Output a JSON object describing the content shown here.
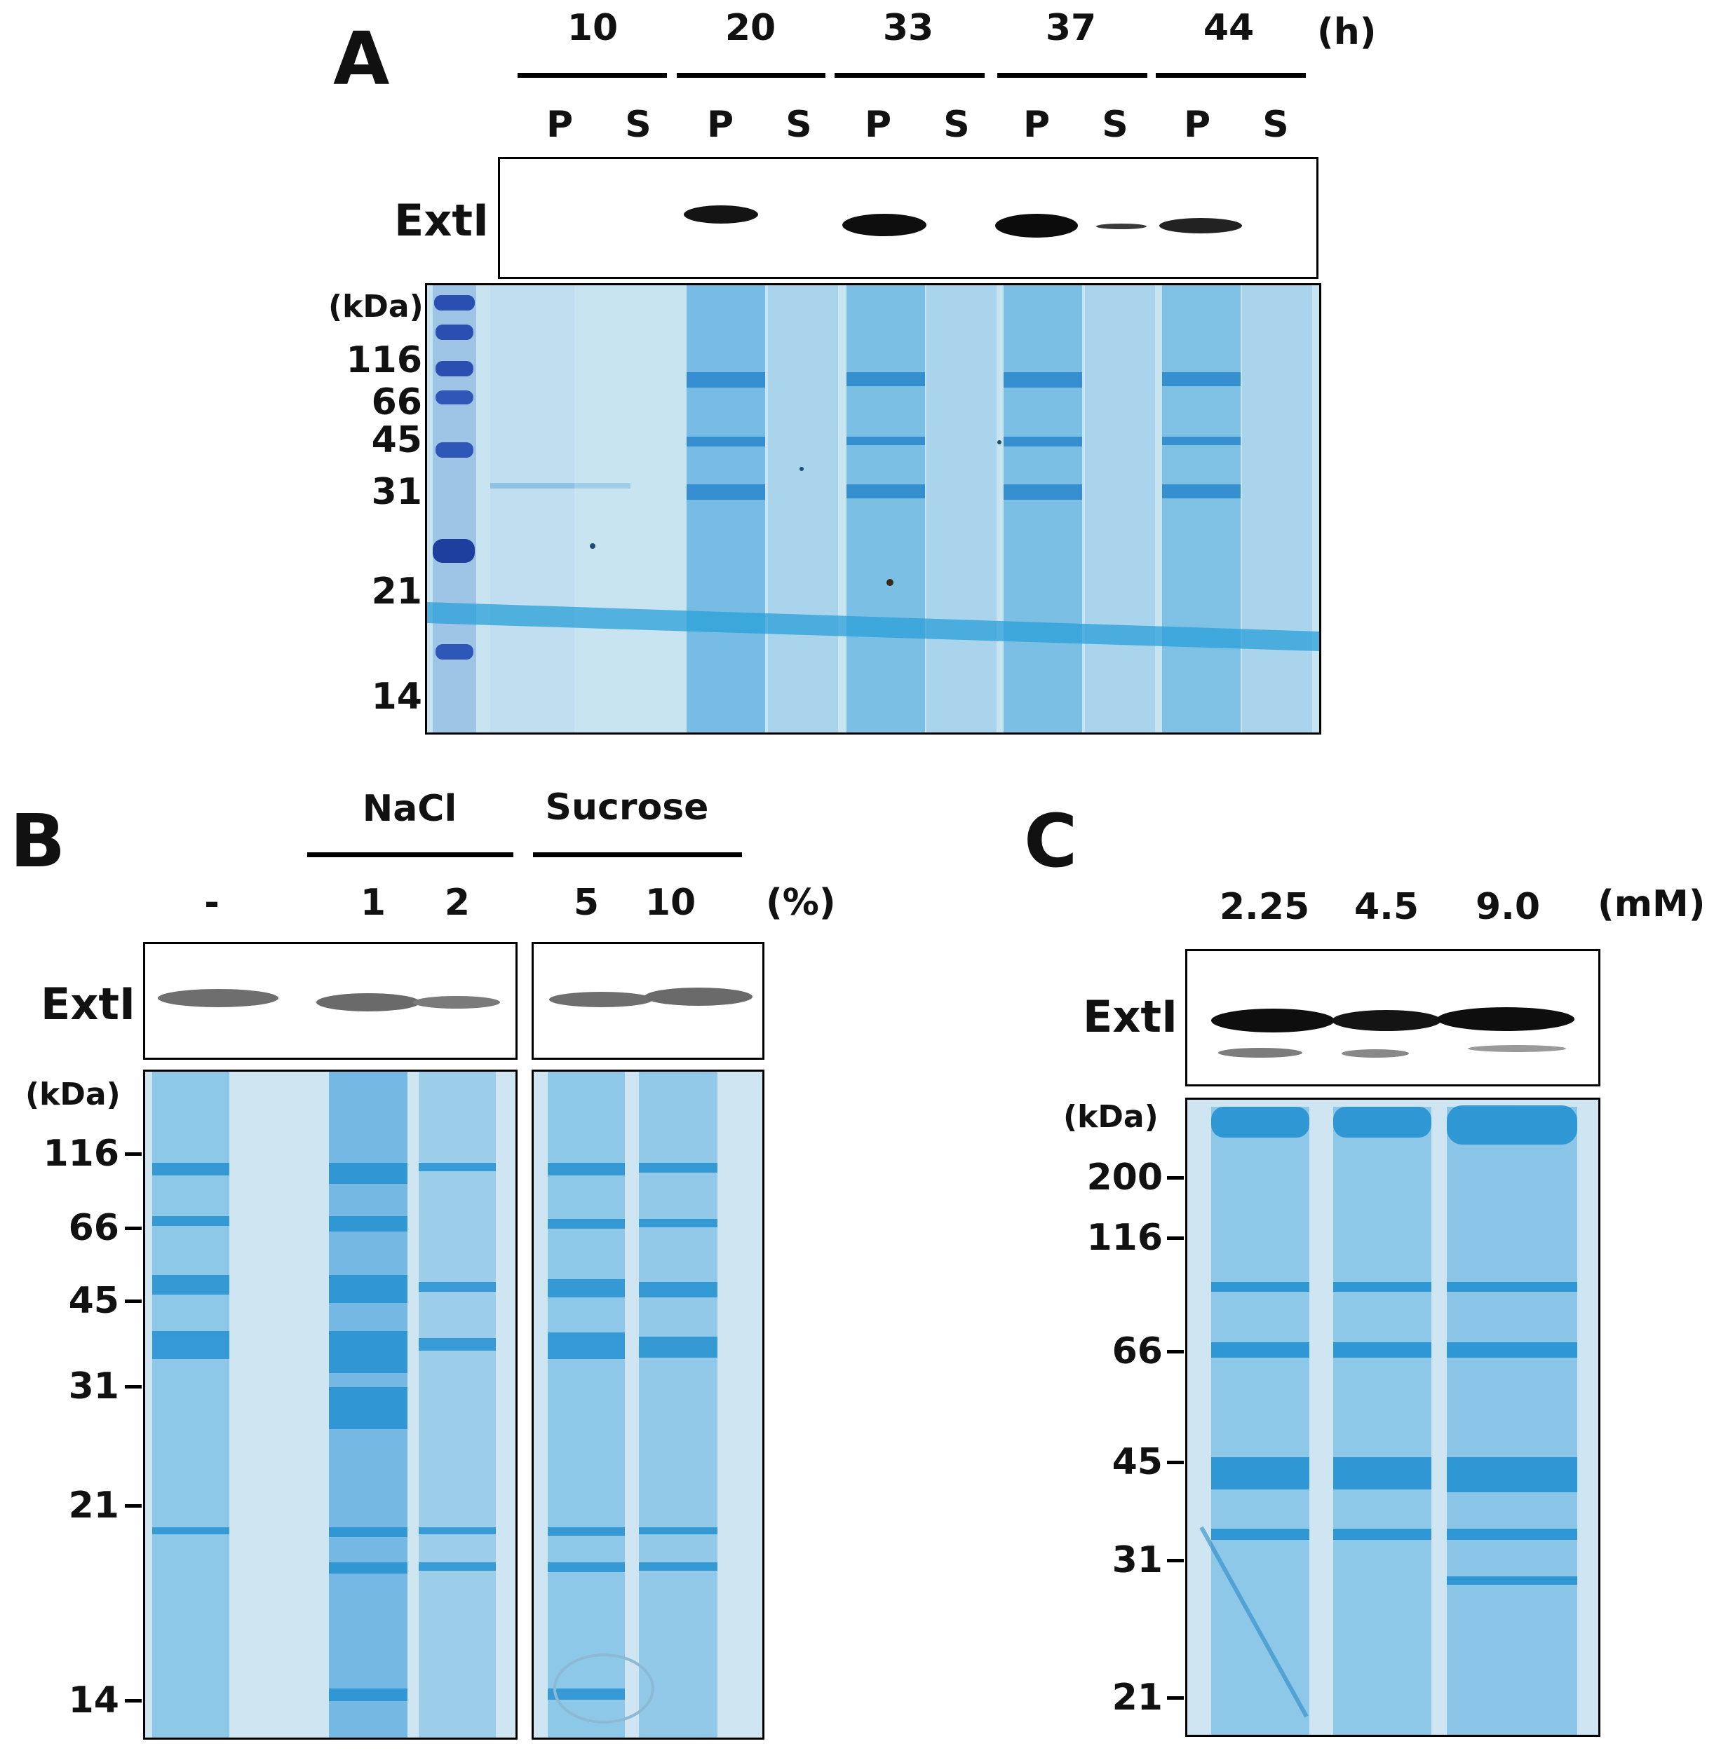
{
  "panels": {
    "A": {
      "letter": "A",
      "timepoints": [
        "10",
        "20",
        "33",
        "37",
        "44"
      ],
      "time_unit": "(h)",
      "fraction_labels": [
        "P",
        "S",
        "P",
        "S",
        "P",
        "S",
        "P",
        "S",
        "P",
        "S"
      ],
      "blot_label": "ExtI",
      "kda_label": "(kDa)",
      "markers": [
        "116",
        "66",
        "45",
        "31",
        "21",
        "14"
      ]
    },
    "B": {
      "letter": "B",
      "group_labels": [
        "NaCl",
        "Sucrose"
      ],
      "control_label": "-",
      "conc_labels": [
        "1",
        "2",
        "5",
        "10"
      ],
      "conc_unit": "(%)",
      "blot_label": "ExtI",
      "kda_label": "(kDa)",
      "markers": [
        "116",
        "66",
        "45",
        "31",
        "21",
        "14"
      ]
    },
    "C": {
      "letter": "C",
      "conc_labels": [
        "2.25",
        "4.5",
        "9.0"
      ],
      "conc_unit": "(mM)",
      "blot_label": "ExtI",
      "kda_label": "(kDa)",
      "markers": [
        "200",
        "116",
        "66",
        "45",
        "31",
        "21"
      ]
    }
  },
  "colors": {
    "gel_background": "#c9e4f1",
    "stain": "#1f8fd0",
    "ladder": "#1e3f9e",
    "band_A": "#111111",
    "band_B": "#707070"
  }
}
